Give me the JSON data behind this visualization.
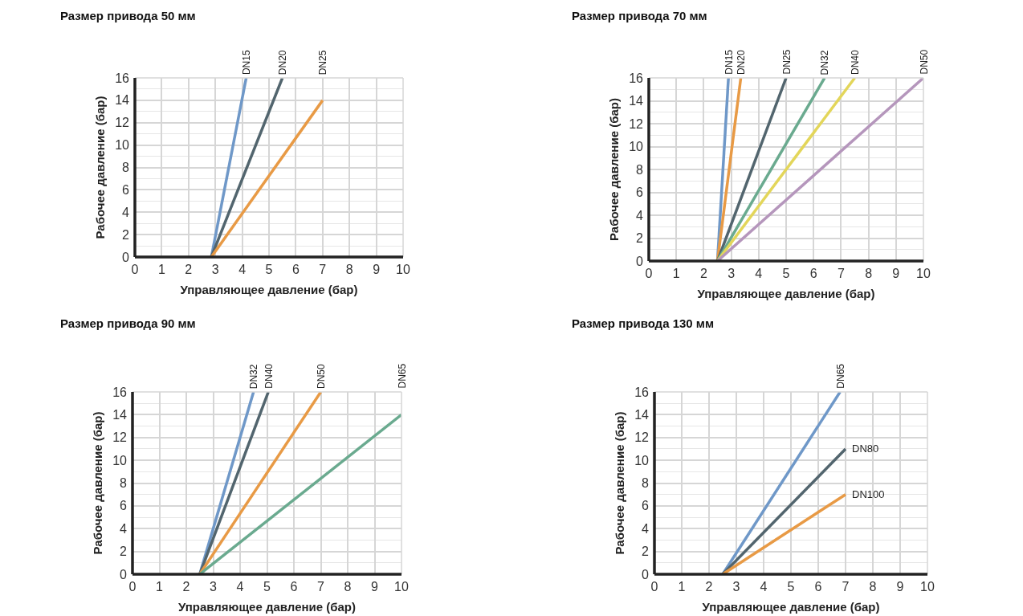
{
  "chart_data": [
    {
      "type": "line",
      "title": "Размер привода 50 мм",
      "xlabel": "Управляющее давление (бар)",
      "ylabel": "Рабочее давление (бар)",
      "xlim": [
        0,
        10
      ],
      "ylim": [
        0,
        16
      ],
      "xticks": [
        0,
        1,
        2,
        3,
        4,
        5,
        6,
        7,
        8,
        9,
        10
      ],
      "yticks": [
        0,
        2,
        4,
        6,
        8,
        10,
        12,
        14,
        16
      ],
      "grid": true,
      "legend": false,
      "marker": "none",
      "line_style": "solid",
      "series": [
        {
          "name": "DN15",
          "color": "#6f98c8",
          "x": [
            2.85,
            4.15
          ],
          "values": [
            0,
            16
          ]
        },
        {
          "name": "DN20",
          "color": "#52656e",
          "x": [
            2.85,
            5.5
          ],
          "values": [
            0,
            16
          ]
        },
        {
          "name": "DN25",
          "color": "#e89a45",
          "x": [
            2.85,
            7
          ],
          "values": [
            0,
            14
          ]
        }
      ]
    },
    {
      "type": "line",
      "title": "Размер привода 70 мм",
      "xlabel": "Управляющее давление (бар)",
      "ylabel": "Рабочее давление (бар)",
      "xlim": [
        0,
        10
      ],
      "ylim": [
        0,
        16
      ],
      "xticks": [
        0,
        1,
        2,
        3,
        4,
        5,
        6,
        7,
        8,
        9,
        10
      ],
      "yticks": [
        0,
        2,
        4,
        6,
        8,
        10,
        12,
        14,
        16
      ],
      "grid": true,
      "legend": false,
      "marker": "none",
      "line_style": "solid",
      "series": [
        {
          "name": "DN15",
          "color": "#6f98c8",
          "x": [
            2.5,
            2.9
          ],
          "values": [
            0,
            16
          ]
        },
        {
          "name": "DN20",
          "color": "#e89a45",
          "x": [
            2.5,
            3.35
          ],
          "values": [
            0,
            16
          ]
        },
        {
          "name": "DN25",
          "color": "#52656e",
          "x": [
            2.5,
            5
          ],
          "values": [
            0,
            16
          ]
        },
        {
          "name": "DN32",
          "color": "#6aaa8f",
          "x": [
            2.5,
            6.4
          ],
          "values": [
            0,
            16
          ]
        },
        {
          "name": "DN40",
          "color": "#e3d65a",
          "x": [
            2.5,
            7.5
          ],
          "values": [
            0,
            16
          ]
        },
        {
          "name": "DN50",
          "color": "#b596bc",
          "x": [
            2.5,
            10
          ],
          "values": [
            0,
            16
          ]
        }
      ]
    },
    {
      "type": "line",
      "title": "Размер привода 90 мм",
      "xlabel": "Управляющее давление (бар)",
      "ylabel": "Рабочее давление (бар)",
      "xlim": [
        0,
        10
      ],
      "ylim": [
        0,
        16
      ],
      "xticks": [
        0,
        1,
        2,
        3,
        4,
        5,
        6,
        7,
        8,
        9,
        10
      ],
      "yticks": [
        0,
        2,
        4,
        6,
        8,
        10,
        12,
        14,
        16
      ],
      "grid": true,
      "legend": false,
      "marker": "none",
      "line_style": "solid",
      "series": [
        {
          "name": "DN32",
          "color": "#6f98c8",
          "x": [
            2.5,
            4.5
          ],
          "values": [
            0,
            16
          ]
        },
        {
          "name": "DN40",
          "color": "#52656e",
          "x": [
            2.5,
            5.05
          ],
          "values": [
            0,
            16
          ]
        },
        {
          "name": "DN50",
          "color": "#e89a45",
          "x": [
            2.5,
            7
          ],
          "values": [
            0,
            16
          ]
        },
        {
          "name": "DN65",
          "color": "#6aaa8f",
          "x": [
            2.5,
            10
          ],
          "values": [
            0,
            14
          ]
        }
      ]
    },
    {
      "type": "line",
      "title": "Размер привода 130 мм",
      "xlabel": "Управляющее давление (бар)",
      "ylabel": "Рабочее давление (бар)",
      "xlim": [
        0,
        10
      ],
      "ylim": [
        0,
        16
      ],
      "xticks": [
        0,
        1,
        2,
        3,
        4,
        5,
        6,
        7,
        8,
        9,
        10
      ],
      "yticks": [
        0,
        2,
        4,
        6,
        8,
        10,
        12,
        14,
        16
      ],
      "grid": true,
      "legend": false,
      "marker": "none",
      "line_style": "solid",
      "series": [
        {
          "name": "DN65",
          "color": "#6f98c8",
          "x": [
            2.5,
            6.8
          ],
          "values": [
            0,
            16
          ]
        },
        {
          "name": "DN80",
          "color": "#52656e",
          "x": [
            2.5,
            7
          ],
          "values": [
            0,
            11
          ]
        },
        {
          "name": "DN100",
          "color": "#e89a45",
          "x": [
            2.5,
            7
          ],
          "values": [
            0,
            7
          ]
        }
      ]
    }
  ]
}
